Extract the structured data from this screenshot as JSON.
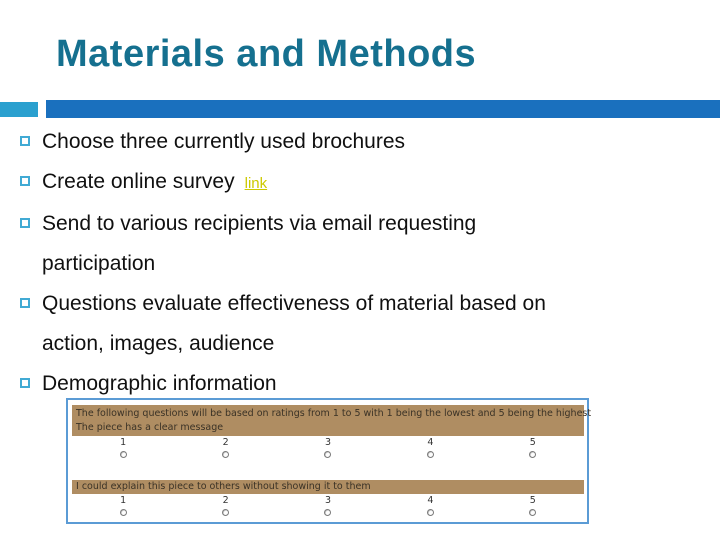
{
  "slide": {
    "title": "Materials and Methods"
  },
  "colors": {
    "title": "#15708F",
    "accent_bar_light": "#2AA0CF",
    "accent_bar_dark": "#1A70BE",
    "bullet_marker": "#41AAD4",
    "hyperlink": "#CCC900",
    "survey_border": "#5B9BD5",
    "survey_band": "#AF8D62"
  },
  "bullets": [
    {
      "lines": [
        "Choose three currently used brochures"
      ]
    },
    {
      "lead": "Create online survey",
      "link": "link"
    },
    {
      "lines": [
        "Send to various recipients via email requesting",
        "participation"
      ]
    },
    {
      "lines": [
        "Questions evaluate effectiveness of material based on",
        "action, images, audience"
      ]
    },
    {
      "lines": [
        "Demographic information"
      ]
    }
  ],
  "survey": {
    "intro_band": {
      "line1": "The following questions will be based on ratings from 1 to 5 with 1 being the lowest and 5 being the highest",
      "line2": "The piece has a clear message"
    },
    "question2_band": "I could explain this piece to others without showing it to them",
    "rating_scale": [
      "1",
      "2",
      "3",
      "4",
      "5"
    ]
  }
}
